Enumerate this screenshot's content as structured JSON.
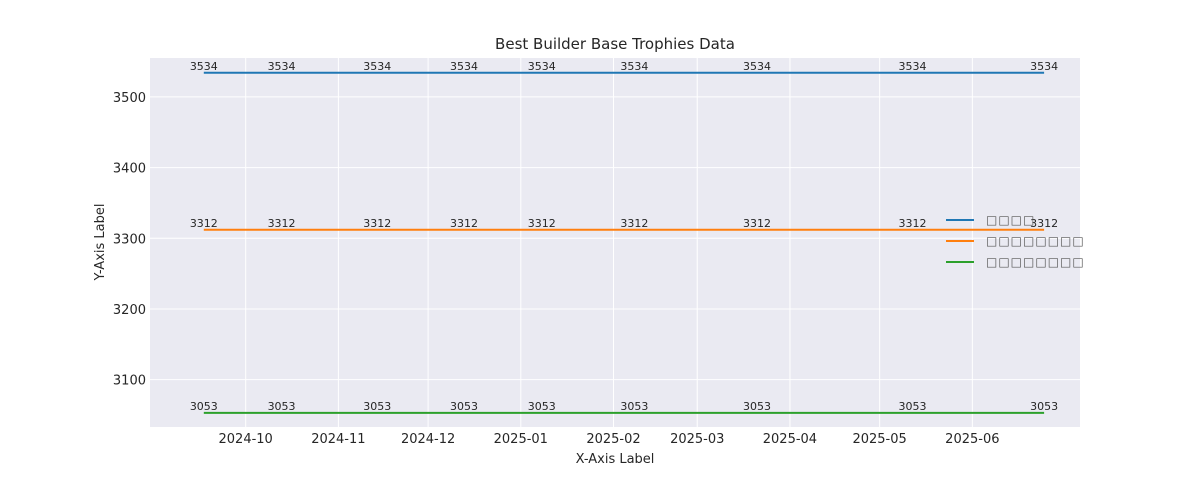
{
  "chart_data": {
    "type": "line",
    "title": "Best Builder Base Trophies Data",
    "xlabel": "X-Axis Label",
    "ylabel": "Y-Axis Label",
    "x": [
      "2024-09-17",
      "2024-10-13",
      "2024-11-14",
      "2024-12-13",
      "2025-01-08",
      "2025-02-08",
      "2025-03-21",
      "2025-05-12",
      "2025-06-25"
    ],
    "x_range": [
      "2024-08-30",
      "2025-07-07"
    ],
    "xticks": [
      "2024-10-01",
      "2024-11-01",
      "2024-12-01",
      "2025-01-01",
      "2025-02-01",
      "2025-03-01",
      "2025-04-01",
      "2025-05-01",
      "2025-06-01"
    ],
    "xtick_labels": [
      "2024-10",
      "2024-11",
      "2024-12",
      "2025-01",
      "2025-02",
      "2025-03",
      "2025-04",
      "2025-05",
      "2025-06"
    ],
    "ylim": [
      3033,
      3555
    ],
    "yticks": [
      3100,
      3200,
      3300,
      3400,
      3500
    ],
    "grid": true,
    "legend_position": "center-right",
    "series": [
      {
        "name": "□□□□",
        "color": "#1f77b4",
        "values": [
          3534,
          3534,
          3534,
          3534,
          3534,
          3534,
          3534,
          3534,
          3534
        ]
      },
      {
        "name": "□□□□□□□□",
        "color": "#ff7f0e",
        "values": [
          3312,
          3312,
          3312,
          3312,
          3312,
          3312,
          3312,
          3312,
          3312
        ]
      },
      {
        "name": "□□□□□□□□",
        "color": "#2ca02c",
        "values": [
          3053,
          3053,
          3053,
          3053,
          3053,
          3053,
          3053,
          3053,
          3053
        ]
      }
    ]
  }
}
